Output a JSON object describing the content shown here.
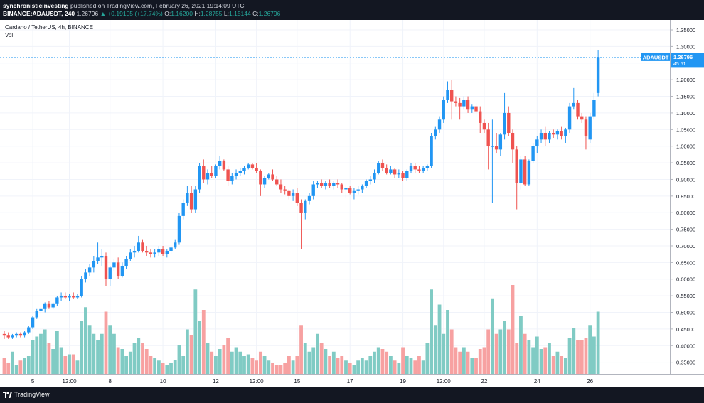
{
  "header": {
    "publisher": "synchronisticinvesting",
    "published_text": "published on TradingView.com, February 26, 2021 19:14:09 UTC",
    "symbol_line": "BINANCE:ADAUSDT, 240",
    "last": "1.26796",
    "change": "▲ +0.19105 (+17.74%)",
    "ohlc": {
      "o_label": "O:",
      "o": "1.16200",
      "h_label": "H:",
      "h": "1.28755",
      "l_label": "L:",
      "l": "1.15144",
      "c_label": "C:",
      "c": "1.26796"
    }
  },
  "legend": {
    "title": "Cardano / TetherUS, 4h, BINANCE",
    "volume": "Vol"
  },
  "price_tag": {
    "symbol": "ADAUSDT",
    "price": "1.26796",
    "countdown": "45:51",
    "color": "#2196f3"
  },
  "footer": {
    "brand": "TradingView"
  },
  "colors": {
    "up": "#26a69a",
    "candle_up": "#2196f3",
    "candle_down": "#ef5350",
    "vol_up": "#80cbc4",
    "vol_down": "#f7a1a1"
  },
  "chart_data": {
    "type": "candlestick",
    "interval": "4h",
    "y_ticks": [
      "1.35000",
      "1.30000",
      "1.25000",
      "1.20000",
      "1.15000",
      "1.10000",
      "1.05000",
      "1.00000",
      "0.95000",
      "0.90000",
      "0.85000",
      "0.80000",
      "0.75000",
      "0.70000",
      "0.65000",
      "0.60000",
      "0.55000",
      "0.50000",
      "0.45000",
      "0.40000",
      "0.35000"
    ],
    "ylim": [
      0.315,
      1.38
    ],
    "x_ticks": [
      {
        "label": "5",
        "bar": 7
      },
      {
        "label": "12:00",
        "bar": 16
      },
      {
        "label": "8",
        "bar": 26
      },
      {
        "label": "10",
        "bar": 39
      },
      {
        "label": "12",
        "bar": 52
      },
      {
        "label": "12:00",
        "bar": 62
      },
      {
        "label": "15",
        "bar": 72
      },
      {
        "label": "17",
        "bar": 85
      },
      {
        "label": "19",
        "bar": 98
      },
      {
        "label": "12:00",
        "bar": 108
      },
      {
        "label": "22",
        "bar": 118
      },
      {
        "label": "24",
        "bar": 131
      },
      {
        "label": "26",
        "bar": 144
      }
    ],
    "last_price": 1.26796,
    "volume_scale": [
      0,
      1
    ],
    "bars": [
      {
        "o": 0.435,
        "h": 0.445,
        "l": 0.42,
        "c": 0.43,
        "v": 0.18
      },
      {
        "o": 0.43,
        "h": 0.44,
        "l": 0.42,
        "c": 0.425,
        "v": 0.12
      },
      {
        "o": 0.425,
        "h": 0.435,
        "l": 0.42,
        "c": 0.43,
        "v": 0.25
      },
      {
        "o": 0.43,
        "h": 0.44,
        "l": 0.425,
        "c": 0.435,
        "v": 0.1
      },
      {
        "o": 0.435,
        "h": 0.44,
        "l": 0.425,
        "c": 0.43,
        "v": 0.15
      },
      {
        "o": 0.43,
        "h": 0.445,
        "l": 0.425,
        "c": 0.44,
        "v": 0.18
      },
      {
        "o": 0.44,
        "h": 0.46,
        "l": 0.435,
        "c": 0.455,
        "v": 0.2
      },
      {
        "o": 0.455,
        "h": 0.49,
        "l": 0.45,
        "c": 0.485,
        "v": 0.38
      },
      {
        "o": 0.485,
        "h": 0.51,
        "l": 0.48,
        "c": 0.505,
        "v": 0.42
      },
      {
        "o": 0.505,
        "h": 0.52,
        "l": 0.495,
        "c": 0.51,
        "v": 0.45
      },
      {
        "o": 0.51,
        "h": 0.53,
        "l": 0.5,
        "c": 0.525,
        "v": 0.5
      },
      {
        "o": 0.525,
        "h": 0.535,
        "l": 0.51,
        "c": 0.515,
        "v": 0.35
      },
      {
        "o": 0.515,
        "h": 0.53,
        "l": 0.51,
        "c": 0.525,
        "v": 0.28
      },
      {
        "o": 0.525,
        "h": 0.55,
        "l": 0.52,
        "c": 0.545,
        "v": 0.48
      },
      {
        "o": 0.545,
        "h": 0.56,
        "l": 0.535,
        "c": 0.55,
        "v": 0.3
      },
      {
        "o": 0.55,
        "h": 0.56,
        "l": 0.54,
        "c": 0.545,
        "v": 0.2
      },
      {
        "o": 0.545,
        "h": 0.555,
        "l": 0.535,
        "c": 0.55,
        "v": 0.22
      },
      {
        "o": 0.55,
        "h": 0.56,
        "l": 0.54,
        "c": 0.545,
        "v": 0.22
      },
      {
        "o": 0.545,
        "h": 0.555,
        "l": 0.54,
        "c": 0.55,
        "v": 0.15
      },
      {
        "o": 0.55,
        "h": 0.61,
        "l": 0.545,
        "c": 0.6,
        "v": 0.6
      },
      {
        "o": 0.6,
        "h": 0.63,
        "l": 0.59,
        "c": 0.62,
        "v": 0.75
      },
      {
        "o": 0.62,
        "h": 0.645,
        "l": 0.61,
        "c": 0.635,
        "v": 0.55
      },
      {
        "o": 0.635,
        "h": 0.67,
        "l": 0.62,
        "c": 0.655,
        "v": 0.45
      },
      {
        "o": 0.655,
        "h": 0.71,
        "l": 0.645,
        "c": 0.665,
        "v": 0.38
      },
      {
        "o": 0.665,
        "h": 0.69,
        "l": 0.64,
        "c": 0.67,
        "v": 0.45
      },
      {
        "o": 0.67,
        "h": 0.68,
        "l": 0.58,
        "c": 0.6,
        "v": 0.7
      },
      {
        "o": 0.6,
        "h": 0.64,
        "l": 0.58,
        "c": 0.635,
        "v": 0.55
      },
      {
        "o": 0.635,
        "h": 0.66,
        "l": 0.625,
        "c": 0.65,
        "v": 0.45
      },
      {
        "o": 0.65,
        "h": 0.665,
        "l": 0.6,
        "c": 0.61,
        "v": 0.3
      },
      {
        "o": 0.61,
        "h": 0.65,
        "l": 0.605,
        "c": 0.64,
        "v": 0.28
      },
      {
        "o": 0.64,
        "h": 0.67,
        "l": 0.63,
        "c": 0.66,
        "v": 0.2
      },
      {
        "o": 0.66,
        "h": 0.69,
        "l": 0.655,
        "c": 0.68,
        "v": 0.25
      },
      {
        "o": 0.68,
        "h": 0.7,
        "l": 0.665,
        "c": 0.685,
        "v": 0.35
      },
      {
        "o": 0.685,
        "h": 0.73,
        "l": 0.68,
        "c": 0.71,
        "v": 0.4
      },
      {
        "o": 0.71,
        "h": 0.72,
        "l": 0.68,
        "c": 0.685,
        "v": 0.35
      },
      {
        "o": 0.685,
        "h": 0.7,
        "l": 0.67,
        "c": 0.68,
        "v": 0.28
      },
      {
        "o": 0.68,
        "h": 0.69,
        "l": 0.665,
        "c": 0.675,
        "v": 0.2
      },
      {
        "o": 0.675,
        "h": 0.69,
        "l": 0.665,
        "c": 0.68,
        "v": 0.18
      },
      {
        "o": 0.68,
        "h": 0.7,
        "l": 0.67,
        "c": 0.69,
        "v": 0.15
      },
      {
        "o": 0.69,
        "h": 0.7,
        "l": 0.67,
        "c": 0.675,
        "v": 0.12
      },
      {
        "o": 0.675,
        "h": 0.69,
        "l": 0.665,
        "c": 0.685,
        "v": 0.1
      },
      {
        "o": 0.685,
        "h": 0.7,
        "l": 0.675,
        "c": 0.695,
        "v": 0.12
      },
      {
        "o": 0.695,
        "h": 0.72,
        "l": 0.69,
        "c": 0.71,
        "v": 0.16
      },
      {
        "o": 0.71,
        "h": 0.8,
        "l": 0.705,
        "c": 0.79,
        "v": 0.32
      },
      {
        "o": 0.79,
        "h": 0.84,
        "l": 0.78,
        "c": 0.83,
        "v": 0.2
      },
      {
        "o": 0.83,
        "h": 0.88,
        "l": 0.82,
        "c": 0.86,
        "v": 0.5
      },
      {
        "o": 0.86,
        "h": 0.88,
        "l": 0.8,
        "c": 0.81,
        "v": 0.44
      },
      {
        "o": 0.81,
        "h": 0.88,
        "l": 0.8,
        "c": 0.87,
        "v": 0.95
      },
      {
        "o": 0.87,
        "h": 0.95,
        "l": 0.86,
        "c": 0.94,
        "v": 0.6
      },
      {
        "o": 0.94,
        "h": 0.96,
        "l": 0.89,
        "c": 0.9,
        "v": 0.72
      },
      {
        "o": 0.9,
        "h": 0.93,
        "l": 0.885,
        "c": 0.92,
        "v": 0.35
      },
      {
        "o": 0.92,
        "h": 0.94,
        "l": 0.905,
        "c": 0.91,
        "v": 0.25
      },
      {
        "o": 0.91,
        "h": 0.945,
        "l": 0.905,
        "c": 0.94,
        "v": 0.2
      },
      {
        "o": 0.94,
        "h": 0.97,
        "l": 0.93,
        "c": 0.955,
        "v": 0.28
      },
      {
        "o": 0.955,
        "h": 0.96,
        "l": 0.925,
        "c": 0.93,
        "v": 0.32
      },
      {
        "o": 0.93,
        "h": 0.94,
        "l": 0.88,
        "c": 0.895,
        "v": 0.4
      },
      {
        "o": 0.895,
        "h": 0.92,
        "l": 0.885,
        "c": 0.91,
        "v": 0.25
      },
      {
        "o": 0.91,
        "h": 0.93,
        "l": 0.9,
        "c": 0.92,
        "v": 0.3
      },
      {
        "o": 0.92,
        "h": 0.935,
        "l": 0.91,
        "c": 0.925,
        "v": 0.25
      },
      {
        "o": 0.925,
        "h": 0.94,
        "l": 0.915,
        "c": 0.935,
        "v": 0.2
      },
      {
        "o": 0.935,
        "h": 0.95,
        "l": 0.93,
        "c": 0.945,
        "v": 0.22
      },
      {
        "o": 0.945,
        "h": 0.95,
        "l": 0.93,
        "c": 0.935,
        "v": 0.18
      },
      {
        "o": 0.935,
        "h": 0.95,
        "l": 0.92,
        "c": 0.925,
        "v": 0.15
      },
      {
        "o": 0.925,
        "h": 0.93,
        "l": 0.85,
        "c": 0.885,
        "v": 0.25
      },
      {
        "o": 0.885,
        "h": 0.91,
        "l": 0.875,
        "c": 0.905,
        "v": 0.2
      },
      {
        "o": 0.905,
        "h": 0.92,
        "l": 0.9,
        "c": 0.915,
        "v": 0.15
      },
      {
        "o": 0.915,
        "h": 0.93,
        "l": 0.895,
        "c": 0.9,
        "v": 0.12
      },
      {
        "o": 0.9,
        "h": 0.91,
        "l": 0.88,
        "c": 0.885,
        "v": 0.1
      },
      {
        "o": 0.885,
        "h": 0.9,
        "l": 0.86,
        "c": 0.87,
        "v": 0.1
      },
      {
        "o": 0.87,
        "h": 0.88,
        "l": 0.855,
        "c": 0.865,
        "v": 0.12
      },
      {
        "o": 0.865,
        "h": 0.87,
        "l": 0.84,
        "c": 0.85,
        "v": 0.2
      },
      {
        "o": 0.85,
        "h": 0.87,
        "l": 0.835,
        "c": 0.86,
        "v": 0.15
      },
      {
        "o": 0.86,
        "h": 0.875,
        "l": 0.82,
        "c": 0.83,
        "v": 0.2
      },
      {
        "o": 0.83,
        "h": 0.84,
        "l": 0.69,
        "c": 0.8,
        "v": 0.55
      },
      {
        "o": 0.8,
        "h": 0.84,
        "l": 0.78,
        "c": 0.835,
        "v": 0.35
      },
      {
        "o": 0.835,
        "h": 0.86,
        "l": 0.825,
        "c": 0.85,
        "v": 0.25
      },
      {
        "o": 0.85,
        "h": 0.895,
        "l": 0.84,
        "c": 0.885,
        "v": 0.3
      },
      {
        "o": 0.885,
        "h": 0.895,
        "l": 0.875,
        "c": 0.89,
        "v": 0.45
      },
      {
        "o": 0.89,
        "h": 0.9,
        "l": 0.875,
        "c": 0.88,
        "v": 0.35
      },
      {
        "o": 0.88,
        "h": 0.895,
        "l": 0.87,
        "c": 0.89,
        "v": 0.28
      },
      {
        "o": 0.89,
        "h": 0.9,
        "l": 0.875,
        "c": 0.88,
        "v": 0.2
      },
      {
        "o": 0.88,
        "h": 0.895,
        "l": 0.87,
        "c": 0.89,
        "v": 0.25
      },
      {
        "o": 0.89,
        "h": 0.9,
        "l": 0.875,
        "c": 0.885,
        "v": 0.18
      },
      {
        "o": 0.885,
        "h": 0.89,
        "l": 0.86,
        "c": 0.87,
        "v": 0.2
      },
      {
        "o": 0.87,
        "h": 0.885,
        "l": 0.845,
        "c": 0.875,
        "v": 0.15
      },
      {
        "o": 0.875,
        "h": 0.88,
        "l": 0.855,
        "c": 0.86,
        "v": 0.12
      },
      {
        "o": 0.86,
        "h": 0.875,
        "l": 0.84,
        "c": 0.865,
        "v": 0.1
      },
      {
        "o": 0.865,
        "h": 0.88,
        "l": 0.855,
        "c": 0.87,
        "v": 0.15
      },
      {
        "o": 0.87,
        "h": 0.885,
        "l": 0.86,
        "c": 0.88,
        "v": 0.18
      },
      {
        "o": 0.88,
        "h": 0.9,
        "l": 0.875,
        "c": 0.895,
        "v": 0.15
      },
      {
        "o": 0.895,
        "h": 0.91,
        "l": 0.885,
        "c": 0.9,
        "v": 0.2
      },
      {
        "o": 0.9,
        "h": 0.93,
        "l": 0.89,
        "c": 0.92,
        "v": 0.25
      },
      {
        "o": 0.92,
        "h": 0.955,
        "l": 0.915,
        "c": 0.95,
        "v": 0.3
      },
      {
        "o": 0.95,
        "h": 0.96,
        "l": 0.925,
        "c": 0.935,
        "v": 0.28
      },
      {
        "o": 0.935,
        "h": 0.945,
        "l": 0.915,
        "c": 0.92,
        "v": 0.25
      },
      {
        "o": 0.92,
        "h": 0.94,
        "l": 0.915,
        "c": 0.93,
        "v": 0.2
      },
      {
        "o": 0.93,
        "h": 0.935,
        "l": 0.905,
        "c": 0.915,
        "v": 0.15
      },
      {
        "o": 0.915,
        "h": 0.93,
        "l": 0.905,
        "c": 0.92,
        "v": 0.12
      },
      {
        "o": 0.92,
        "h": 0.925,
        "l": 0.895,
        "c": 0.905,
        "v": 0.3
      },
      {
        "o": 0.905,
        "h": 0.93,
        "l": 0.895,
        "c": 0.925,
        "v": 0.2
      },
      {
        "o": 0.925,
        "h": 0.95,
        "l": 0.92,
        "c": 0.94,
        "v": 0.18
      },
      {
        "o": 0.94,
        "h": 0.95,
        "l": 0.92,
        "c": 0.93,
        "v": 0.15
      },
      {
        "o": 0.93,
        "h": 0.94,
        "l": 0.92,
        "c": 0.925,
        "v": 0.2
      },
      {
        "o": 0.925,
        "h": 0.94,
        "l": 0.92,
        "c": 0.935,
        "v": 0.15
      },
      {
        "o": 0.935,
        "h": 0.945,
        "l": 0.925,
        "c": 0.94,
        "v": 0.35
      },
      {
        "o": 0.94,
        "h": 1.04,
        "l": 0.935,
        "c": 1.03,
        "v": 0.95
      },
      {
        "o": 1.03,
        "h": 1.06,
        "l": 1.02,
        "c": 1.05,
        "v": 0.55
      },
      {
        "o": 1.05,
        "h": 1.09,
        "l": 1.04,
        "c": 1.08,
        "v": 0.78
      },
      {
        "o": 1.08,
        "h": 1.15,
        "l": 1.07,
        "c": 1.14,
        "v": 0.45
      },
      {
        "o": 1.14,
        "h": 1.195,
        "l": 1.13,
        "c": 1.17,
        "v": 0.72
      },
      {
        "o": 1.17,
        "h": 1.2,
        "l": 1.08,
        "c": 1.135,
        "v": 0.5
      },
      {
        "o": 1.135,
        "h": 1.15,
        "l": 1.12,
        "c": 1.13,
        "v": 0.3
      },
      {
        "o": 1.13,
        "h": 1.145,
        "l": 1.08,
        "c": 1.12,
        "v": 0.25
      },
      {
        "o": 1.12,
        "h": 1.15,
        "l": 1.11,
        "c": 1.14,
        "v": 0.3
      },
      {
        "o": 1.14,
        "h": 1.15,
        "l": 1.1,
        "c": 1.11,
        "v": 0.25
      },
      {
        "o": 1.11,
        "h": 1.125,
        "l": 1.1,
        "c": 1.12,
        "v": 0.18
      },
      {
        "o": 1.12,
        "h": 1.13,
        "l": 1.09,
        "c": 1.105,
        "v": 0.18
      },
      {
        "o": 1.105,
        "h": 1.12,
        "l": 1.04,
        "c": 1.07,
        "v": 0.28
      },
      {
        "o": 1.07,
        "h": 1.08,
        "l": 1.04,
        "c": 1.05,
        "v": 0.3
      },
      {
        "o": 1.05,
        "h": 1.07,
        "l": 0.93,
        "c": 1.0,
        "v": 0.5
      },
      {
        "o": 1.0,
        "h": 1.08,
        "l": 0.83,
        "c": 1.0,
        "v": 0.85
      },
      {
        "o": 1.0,
        "h": 1.04,
        "l": 0.98,
        "c": 0.99,
        "v": 0.45
      },
      {
        "o": 0.99,
        "h": 1.04,
        "l": 0.97,
        "c": 1.035,
        "v": 0.5
      },
      {
        "o": 1.035,
        "h": 1.16,
        "l": 1.02,
        "c": 1.1,
        "v": 0.6
      },
      {
        "o": 1.1,
        "h": 1.12,
        "l": 1.03,
        "c": 1.04,
        "v": 0.5
      },
      {
        "o": 1.04,
        "h": 1.05,
        "l": 0.95,
        "c": 0.99,
        "v": 1.0
      },
      {
        "o": 0.99,
        "h": 1.0,
        "l": 0.81,
        "c": 0.89,
        "v": 0.35
      },
      {
        "o": 0.89,
        "h": 0.97,
        "l": 0.87,
        "c": 0.96,
        "v": 0.65
      },
      {
        "o": 0.96,
        "h": 0.97,
        "l": 0.88,
        "c": 0.885,
        "v": 0.45
      },
      {
        "o": 0.885,
        "h": 0.96,
        "l": 0.88,
        "c": 0.955,
        "v": 0.38
      },
      {
        "o": 0.955,
        "h": 1.01,
        "l": 0.95,
        "c": 1.0,
        "v": 0.3
      },
      {
        "o": 1.0,
        "h": 1.03,
        "l": 0.98,
        "c": 1.02,
        "v": 0.42
      },
      {
        "o": 1.02,
        "h": 1.05,
        "l": 1.01,
        "c": 1.04,
        "v": 0.28
      },
      {
        "o": 1.04,
        "h": 1.06,
        "l": 1.0,
        "c": 1.02,
        "v": 0.3
      },
      {
        "o": 1.02,
        "h": 1.045,
        "l": 1.01,
        "c": 1.04,
        "v": 0.35
      },
      {
        "o": 1.04,
        "h": 1.05,
        "l": 1.025,
        "c": 1.035,
        "v": 0.2
      },
      {
        "o": 1.035,
        "h": 1.05,
        "l": 1.02,
        "c": 1.045,
        "v": 0.25
      },
      {
        "o": 1.045,
        "h": 1.06,
        "l": 1.02,
        "c": 1.03,
        "v": 0.2
      },
      {
        "o": 1.03,
        "h": 1.055,
        "l": 1.01,
        "c": 1.05,
        "v": 0.18
      },
      {
        "o": 1.05,
        "h": 1.13,
        "l": 1.04,
        "c": 1.12,
        "v": 0.4
      },
      {
        "o": 1.12,
        "h": 1.175,
        "l": 1.11,
        "c": 1.13,
        "v": 0.52
      },
      {
        "o": 1.13,
        "h": 1.14,
        "l": 1.08,
        "c": 1.09,
        "v": 0.38
      },
      {
        "o": 1.09,
        "h": 1.1,
        "l": 1.07,
        "c": 1.08,
        "v": 0.38
      },
      {
        "o": 1.08,
        "h": 1.09,
        "l": 0.99,
        "c": 1.03,
        "v": 0.4
      },
      {
        "o": 1.02,
        "h": 1.1,
        "l": 1.01,
        "c": 1.09,
        "v": 0.55
      },
      {
        "o": 1.09,
        "h": 1.16,
        "l": 1.08,
        "c": 1.14,
        "v": 0.42
      },
      {
        "o": 1.16,
        "h": 1.288,
        "l": 1.15,
        "c": 1.268,
        "v": 0.7
      }
    ]
  }
}
